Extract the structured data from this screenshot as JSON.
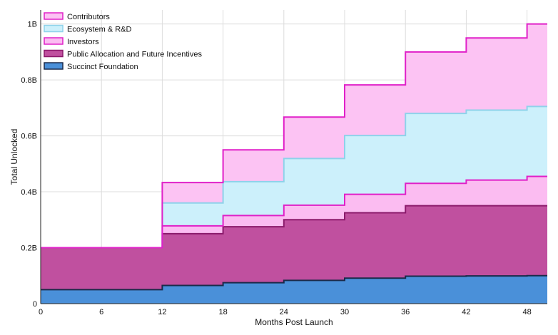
{
  "chart_data": {
    "type": "area",
    "step": true,
    "stacked": true,
    "xlabel": "Months Post Launch",
    "ylabel": "Total Unlocked",
    "xlim": [
      0,
      50
    ],
    "ylim": [
      0,
      1.05
    ],
    "x_ticks": [
      0,
      6,
      12,
      18,
      24,
      30,
      36,
      42,
      48
    ],
    "y_ticks": [
      0,
      0.2,
      0.4,
      0.6,
      0.8,
      1.0
    ],
    "y_tick_labels": [
      "0",
      "0.2B",
      "0.4B",
      "0.6B",
      "0.8B",
      "1B"
    ],
    "grid": true,
    "legend_position": "top-left",
    "x": [
      0,
      12,
      18,
      24,
      30,
      36,
      42,
      48,
      50
    ],
    "series": [
      {
        "name": "Succinct Foundation",
        "values": [
          0.05,
          0.065,
          0.075,
          0.083,
          0.091,
          0.098,
          0.099,
          0.1,
          0.1
        ],
        "fill": "#4a90d9",
        "line": "#1a2a4a"
      },
      {
        "name": "Public Allocation and Future Incentives",
        "values": [
          0.15,
          0.185,
          0.2,
          0.217,
          0.234,
          0.252,
          0.251,
          0.25,
          0.25
        ],
        "fill": "#c0509f",
        "line": "#8b1a6b"
      },
      {
        "name": "Investors",
        "values": [
          0,
          0.028,
          0.04,
          0.052,
          0.066,
          0.08,
          0.092,
          0.105,
          0.105
        ],
        "fill": "#fbbcf1",
        "line": "#e020c8"
      },
      {
        "name": "Ecosystem & R&D",
        "values": [
          0,
          0.082,
          0.121,
          0.167,
          0.21,
          0.25,
          0.25,
          0.25,
          0.25
        ],
        "fill": "#ccf0fb",
        "line": "#8ed2ea"
      },
      {
        "name": "Contributors",
        "values": [
          0,
          0.073,
          0.114,
          0.148,
          0.181,
          0.22,
          0.258,
          0.295,
          0.295
        ],
        "fill": "#fcc3f3",
        "line": "#e020c8"
      }
    ],
    "legend_order": [
      "Contributors",
      "Ecosystem & R&D",
      "Investors",
      "Public Allocation and Future Incentives",
      "Succinct Foundation"
    ]
  }
}
